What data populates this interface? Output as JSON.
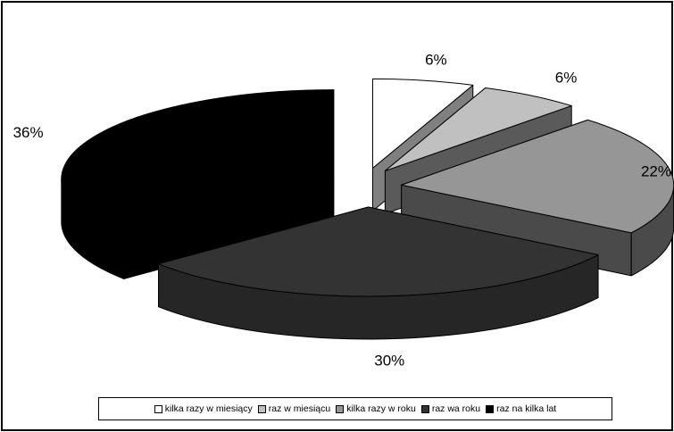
{
  "chart_data": {
    "type": "pie",
    "title": "",
    "categories": [
      "kilka razy w miesiący",
      "raz w miesiącu",
      "kilka razy w roku",
      "raz wa roku",
      "raz na kilka lat"
    ],
    "values": [
      6,
      6,
      22,
      30,
      36
    ],
    "labels": [
      "6%",
      "6%",
      "22%",
      "30%",
      "36%"
    ],
    "colors": [
      "#ffffff",
      "#c0c0c0",
      "#969696",
      "#333333",
      "#000000"
    ],
    "side_colors": [
      "#808080",
      "#5a5a5a",
      "#4a4a4a",
      "#262626",
      "#000000"
    ],
    "legend_position": "bottom",
    "three_d": true,
    "exploded": true
  }
}
